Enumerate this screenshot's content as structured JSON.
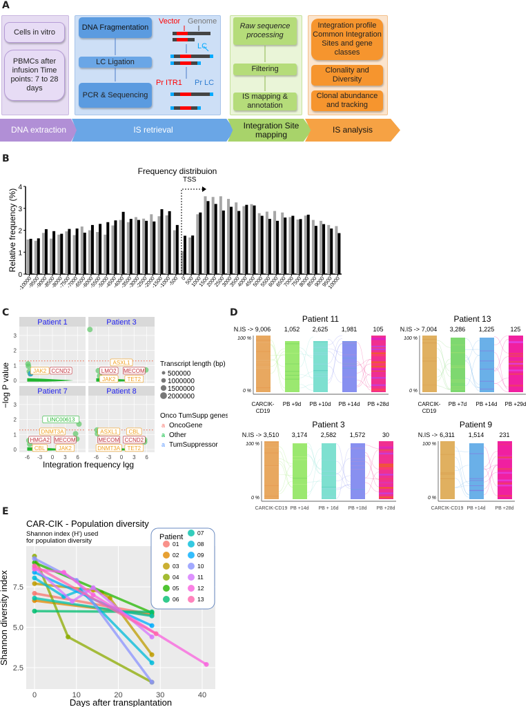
{
  "panels": {
    "a": "A",
    "b": "B",
    "c": "C",
    "d": "D",
    "e": "E"
  },
  "panel_a": {
    "col1": {
      "box1": "Cells in vitro",
      "box2": "PBMCs after infusion Time points: 7 to 28 days"
    },
    "col2": {
      "box1": "DNA Fragmentation",
      "box2": "LC Ligation",
      "box3": "PCR & Sequencing",
      "vector": "Vector",
      "genome": "Genome",
      "lc": "LC",
      "pr_itr1": "Pr ITR1",
      "pr_lc": "Pr LC"
    },
    "col3": {
      "box1": "Raw sequence processing",
      "box2": "Filtering",
      "box3": "IS mapping & annotation"
    },
    "col4": {
      "box1": "Integration profile Common Integration Sites and gene classes",
      "box2": "Clonality and Diversity",
      "box3": "Clonal abundance and tracking"
    },
    "steps": [
      "DNA extraction",
      "IS retrieval",
      "Integration Site mapping",
      "IS analysis"
    ],
    "colors": {
      "purple": "#b79ad6",
      "blue": "#6fa6e6",
      "green": "#a8d36a",
      "orange": "#f5a243"
    }
  },
  "chart_data": [
    {
      "type": "bar",
      "title": "Frequency distribuion",
      "annotation": "TSS",
      "xlabel": "",
      "ylabel": "Relative frequency (%)",
      "ylim": [
        0,
        4
      ],
      "yticks": [
        "0",
        "1",
        "2",
        "3",
        "4"
      ],
      "categories": [
        "-10000",
        "-9500",
        "-9000",
        "-8500",
        "-8000",
        "-7500",
        "-7000",
        "-6500",
        "-6000",
        "-5500",
        "-5000",
        "-4500",
        "-4000",
        "-3500",
        "-3000",
        "-2500",
        "-2000",
        "-1500",
        "-1000",
        "-500",
        "0",
        "500",
        "1000",
        "1500",
        "2000",
        "2500",
        "3000",
        "3500",
        "4000",
        "4500",
        "5000",
        "5500",
        "6000",
        "6500",
        "7000",
        "7500",
        "8000",
        "8500",
        "9000",
        "9500",
        "10000"
      ],
      "series": [
        {
          "name": "gray",
          "color": "#a6a6a6",
          "values": [
            1.58,
            1.52,
            1.88,
            1.62,
            1.8,
            1.95,
            1.78,
            2.17,
            2.0,
            1.92,
            1.8,
            2.22,
            2.47,
            2.37,
            2.6,
            2.53,
            2.73,
            2.64,
            2.68,
            2.0,
            1.05,
            1.67,
            2.73,
            3.55,
            3.52,
            3.55,
            3.43,
            3.27,
            3.1,
            3.19,
            2.78,
            2.85,
            2.88,
            2.81,
            2.6,
            2.49,
            2.67,
            2.47,
            2.43,
            2.24,
            2.19
          ]
        },
        {
          "name": "black",
          "color": "#000000",
          "values": [
            1.61,
            1.63,
            2.05,
            1.96,
            1.84,
            2.06,
            2.08,
            1.89,
            2.24,
            2.29,
            2.37,
            2.45,
            2.84,
            2.52,
            2.47,
            2.43,
            2.4,
            2.96,
            2.87,
            2.24,
            1.75,
            1.76,
            2.81,
            3.33,
            3.2,
            2.9,
            3.07,
            2.88,
            3.16,
            3.13,
            2.66,
            2.52,
            2.43,
            2.58,
            2.66,
            2.51,
            2.71,
            2.2,
            2.28,
            2.08,
            1.87
          ]
        }
      ]
    },
    {
      "type": "line",
      "title": "CAR-CIK - Population diversity",
      "subtitle": "Shannon index (H') used for population diversity",
      "subtitle_lines": [
        "Shannon index (H') used",
        "for population diversity"
      ],
      "xlabel": "Days after transplantation",
      "ylabel": "Shannon diversity index",
      "xlim": [
        -2,
        43
      ],
      "ylim": [
        1.2,
        9.8
      ],
      "xticks": [
        "0",
        "10",
        "20",
        "30",
        "40"
      ],
      "yticks": [
        "2.5",
        "5.0",
        "7.5"
      ],
      "legend_title": "Patient",
      "legend_placement": "top-right",
      "series": [
        {
          "name": "01",
          "color": "#F8766D",
          "x": [
            0,
            28
          ],
          "y": [
            7.1,
            5.8
          ]
        },
        {
          "name": "02",
          "color": "#E18A00",
          "x": [
            0,
            28
          ],
          "y": [
            6.65,
            5.75
          ]
        },
        {
          "name": "03",
          "color": "#BE9C00",
          "x": [
            0,
            14,
            16,
            18,
            28
          ],
          "y": [
            7.7,
            7.3,
            7.15,
            6.8,
            3.3
          ]
        },
        {
          "name": "04",
          "color": "#8CAB00",
          "x": [
            0,
            8,
            28
          ],
          "y": [
            9.4,
            4.4,
            1.6
          ]
        },
        {
          "name": "05",
          "color": "#24B700",
          "x": [
            0,
            28
          ],
          "y": [
            9.0,
            5.9
          ]
        },
        {
          "name": "06",
          "color": "#00BE70",
          "x": [
            0,
            28
          ],
          "y": [
            6.0,
            5.95
          ]
        },
        {
          "name": "07",
          "color": "#00C1AB",
          "x": [
            0,
            28
          ],
          "y": [
            6.8,
            5.7
          ]
        },
        {
          "name": "08",
          "color": "#00BBDA",
          "x": [
            0,
            7,
            11,
            28
          ],
          "y": [
            8.05,
            6.9,
            7.3,
            2.8
          ]
        },
        {
          "name": "09",
          "color": "#00ACFC",
          "x": [
            0,
            28
          ],
          "y": [
            8.4,
            5.1
          ]
        },
        {
          "name": "10",
          "color": "#8B93FF",
          "x": [
            0,
            10,
            28
          ],
          "y": [
            9.25,
            7.9,
            1.6
          ]
        },
        {
          "name": "11",
          "color": "#D575FE",
          "x": [
            0,
            9,
            14,
            28
          ],
          "y": [
            8.7,
            6.6,
            7.45,
            4.4
          ]
        },
        {
          "name": "12",
          "color": "#F962DD",
          "x": [
            0,
            7,
            14,
            41
          ],
          "y": [
            8.6,
            8.4,
            7.0,
            2.7
          ]
        },
        {
          "name": "13",
          "color": "#FF65AC",
          "x": [
            0,
            29
          ],
          "y": [
            8.8,
            4.6
          ]
        }
      ]
    }
  ],
  "panel_c": {
    "ylabel": "−log P value",
    "xlabel": "Integration frequency log",
    "xlabel_sub": "2",
    "xticks": [
      "-6",
      "-3",
      "0",
      "3",
      "6"
    ],
    "yticks": [
      "0",
      "1",
      "2",
      "3"
    ],
    "facets": [
      {
        "title": "Patient 1",
        "labels": [
          {
            "text": "JAK2",
            "cls": "onc"
          },
          {
            "text": "CCND2",
            "cls": "onc2"
          }
        ]
      },
      {
        "title": "Patient 3",
        "labels": [
          {
            "text": "ASXL1",
            "cls": "onc"
          },
          {
            "text": "LMO2",
            "cls": "onc2"
          },
          {
            "text": "MECOM",
            "cls": "onc2"
          },
          {
            "text": "JAK2",
            "cls": "onc"
          },
          {
            "text": "TET2",
            "cls": "onc"
          }
        ]
      },
      {
        "title": "Patient 7",
        "labels": [
          {
            "text": "LINC00613",
            "cls": "oth"
          },
          {
            "text": "DNMT3A",
            "cls": "onc"
          },
          {
            "text": "HMGA2",
            "cls": "onc2"
          },
          {
            "text": "MECOM",
            "cls": "onc2"
          },
          {
            "text": "CBL",
            "cls": "onc"
          },
          {
            "text": "JAK2",
            "cls": "onc"
          }
        ]
      },
      {
        "title": "Patient 8",
        "labels": [
          {
            "text": "ASXL1",
            "cls": "onc"
          },
          {
            "text": "CBL",
            "cls": "onc"
          },
          {
            "text": "MECOM",
            "cls": "onc2"
          },
          {
            "text": "CCND2",
            "cls": "onc2"
          },
          {
            "text": "DNMT3A",
            "cls": "onc"
          },
          {
            "text": "TET2",
            "cls": "onc"
          }
        ]
      }
    ],
    "legend_size_title": "Transcript length (bp)",
    "legend_sizes": [
      "500000",
      "1000000",
      "1500000",
      "2000000"
    ],
    "legend_class_title": "Onco TumSupp genes",
    "legend_classes": [
      {
        "label": "OncoGene",
        "color": "#F8766D"
      },
      {
        "label": "Other",
        "color": "#00BA38"
      },
      {
        "label": "TumSuppressor",
        "color": "#619CFF"
      }
    ]
  },
  "panel_d": {
    "axis_top": "100 %",
    "axis_bottom": "0 %",
    "nis": "N.IS ->",
    "plots": [
      {
        "title": "Patient 11",
        "counts": [
          "9,006",
          "1,052",
          "2,625",
          "1,981",
          "105"
        ],
        "labels": [
          "CARCIK-CD19",
          "PB +9d",
          "PB +10d",
          "PB +14d",
          "PB +28d"
        ]
      },
      {
        "title": "Patient 13",
        "counts": [
          "7,004",
          "3,286",
          "1,225",
          "125"
        ],
        "labels": [
          "CARCIK-CD19",
          "PB +7d",
          "PB +14d",
          "PB +29d"
        ]
      },
      {
        "title": "Patient 3",
        "counts": [
          "3,510",
          "3,174",
          "2,582",
          "1,572",
          "30"
        ],
        "labels": [
          "CARCIK-CD19",
          "PB +14d",
          "PB + 16d",
          "PB +18d",
          "PB +28d"
        ]
      },
      {
        "title": "Patient 9",
        "counts": [
          "6,311",
          "1,514",
          "231"
        ],
        "labels": [
          "CARCIK-CD19",
          "PB +14d",
          "PB +28d"
        ]
      }
    ]
  }
}
